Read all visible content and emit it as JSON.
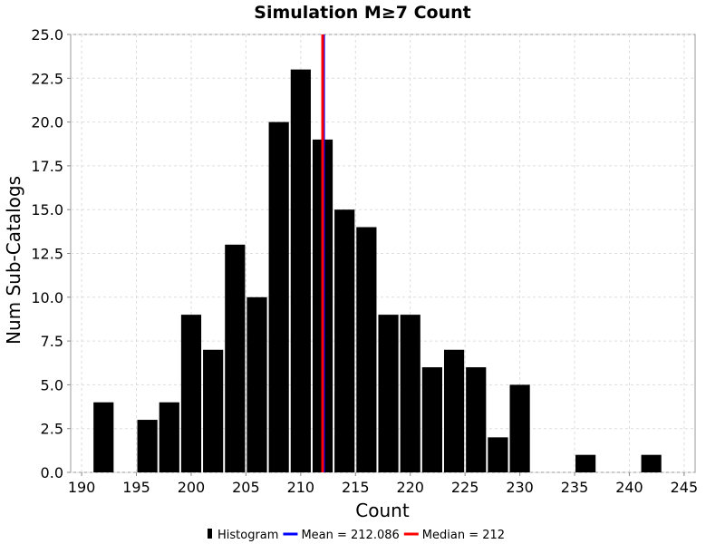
{
  "chart_data": {
    "type": "bar",
    "title": "Simulation M≥7 Count",
    "xlabel": "Count",
    "ylabel": "Num Sub-Catalogs",
    "xlim": [
      189,
      246
    ],
    "ylim": [
      0,
      25
    ],
    "x_ticks": [
      190,
      195,
      200,
      205,
      210,
      215,
      220,
      225,
      230,
      235,
      240,
      245
    ],
    "y_ticks": [
      "0.0",
      "2.5",
      "5.0",
      "7.5",
      "10.0",
      "12.5",
      "15.0",
      "17.5",
      "20.0",
      "22.5",
      "25.0"
    ],
    "bin_width": 2,
    "bins": [
      {
        "x": 192,
        "value": 4
      },
      {
        "x": 194,
        "value": 0
      },
      {
        "x": 196,
        "value": 3
      },
      {
        "x": 198,
        "value": 4
      },
      {
        "x": 200,
        "value": 9
      },
      {
        "x": 202,
        "value": 7
      },
      {
        "x": 204,
        "value": 13
      },
      {
        "x": 206,
        "value": 10
      },
      {
        "x": 208,
        "value": 20
      },
      {
        "x": 210,
        "value": 23
      },
      {
        "x": 212,
        "value": 19
      },
      {
        "x": 214,
        "value": 15
      },
      {
        "x": 216,
        "value": 14
      },
      {
        "x": 218,
        "value": 9
      },
      {
        "x": 220,
        "value": 9
      },
      {
        "x": 222,
        "value": 6
      },
      {
        "x": 224,
        "value": 7
      },
      {
        "x": 226,
        "value": 6
      },
      {
        "x": 228,
        "value": 2
      },
      {
        "x": 230,
        "value": 5
      },
      {
        "x": 236,
        "value": 1
      },
      {
        "x": 242,
        "value": 1
      }
    ],
    "lines": [
      {
        "name": "Mean = 212.086",
        "x": 212.086,
        "color": "#0000ff"
      },
      {
        "name": "Median = 212",
        "x": 212,
        "color": "#ff0000"
      }
    ],
    "bar_color": "#000000",
    "grid": true,
    "legend": {
      "position": "bottom",
      "entries": [
        {
          "label": "Histogram",
          "color": "#000000",
          "kind": "bar"
        },
        {
          "label": "Mean = 212.086",
          "color": "#0000ff",
          "kind": "line"
        },
        {
          "label": "Median = 212",
          "color": "#ff0000",
          "kind": "line"
        }
      ]
    }
  }
}
